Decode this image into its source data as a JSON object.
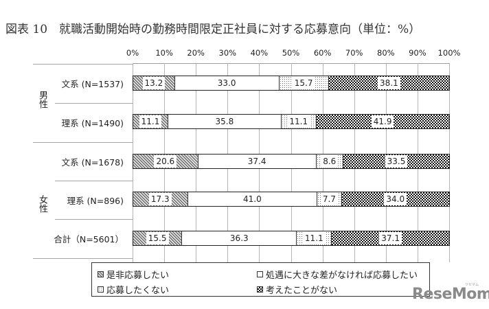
{
  "title": "図表 10　就職活動開始時の勤務時間限定正社員に対する応募意向（単位：%）",
  "chart_data": {
    "type": "bar",
    "orientation": "horizontal",
    "stacked": "percent",
    "title": "図表 10　就職活動開始時の勤務時間限定正社員に対する応募意向（単位：%）",
    "xlabel": "",
    "ylabel": "",
    "xlim": [
      0,
      100
    ],
    "x_ticks": [
      "0%",
      "10%",
      "20%",
      "30%",
      "40%",
      "50%",
      "60%",
      "70%",
      "80%",
      "90%",
      "100%"
    ],
    "grid": true,
    "legend_position": "bottom",
    "groups": [
      {
        "label": "男性",
        "categories": [
          "文系 (N=1537)",
          "理系 (N=1490)"
        ]
      },
      {
        "label": "女性",
        "categories": [
          "文系 (N=1678)",
          "理系 (N=896)"
        ]
      },
      {
        "label": "",
        "categories": [
          "合計 (N=5601)"
        ]
      }
    ],
    "categories": [
      "文系 (N=1537)",
      "理系 (N=1490)",
      "文系 (N=1678)",
      "理系 (N=896)",
      "合計 (N=5601)"
    ],
    "series": [
      {
        "name": "是非応募したい",
        "pattern": "diagonal-hatch",
        "values": [
          13.2,
          11.1,
          20.6,
          17.3,
          15.5
        ]
      },
      {
        "name": "処遇に大きな差がなければ応募したい",
        "pattern": "white",
        "values": [
          33.0,
          35.8,
          37.4,
          41.0,
          36.3
        ]
      },
      {
        "name": "応募したくない",
        "pattern": "light-dots",
        "values": [
          15.7,
          11.1,
          8.6,
          7.7,
          11.1
        ]
      },
      {
        "name": "考えたことがない",
        "pattern": "dark-checker",
        "values": [
          38.1,
          41.9,
          33.5,
          34.0,
          37.1
        ]
      }
    ]
  },
  "axis": {
    "ticks": [
      "0%",
      "10%",
      "20%",
      "30%",
      "40%",
      "50%",
      "60%",
      "70%",
      "80%",
      "90%",
      "100%"
    ]
  },
  "groups": {
    "male": "男性",
    "female": "女性"
  },
  "rows": [
    {
      "label": "文系 (N=1537)",
      "values": [
        "13.2",
        "33.0",
        "15.7",
        "38.1"
      ]
    },
    {
      "label": "理系 (N=1490)",
      "values": [
        "11.1",
        "35.8",
        "11.1",
        "41.9"
      ]
    },
    {
      "label": "文系 (N=1678)",
      "values": [
        "20.6",
        "37.4",
        "8.6",
        "33.5"
      ]
    },
    {
      "label": "理系 (N=896)",
      "values": [
        "17.3",
        "41.0",
        "7.7",
        "34.0"
      ]
    },
    {
      "label": "合計（N=5601）",
      "values": [
        "15.5",
        "36.3",
        "11.1",
        "37.1"
      ]
    }
  ],
  "legend": [
    {
      "label": "是非応募したい"
    },
    {
      "label": "処遇に大きな差がなければ応募したい"
    },
    {
      "label": "応募したくない"
    },
    {
      "label": "考えたことがない"
    }
  ],
  "watermark": {
    "text": "ReseMom",
    "small": "リセマム"
  }
}
